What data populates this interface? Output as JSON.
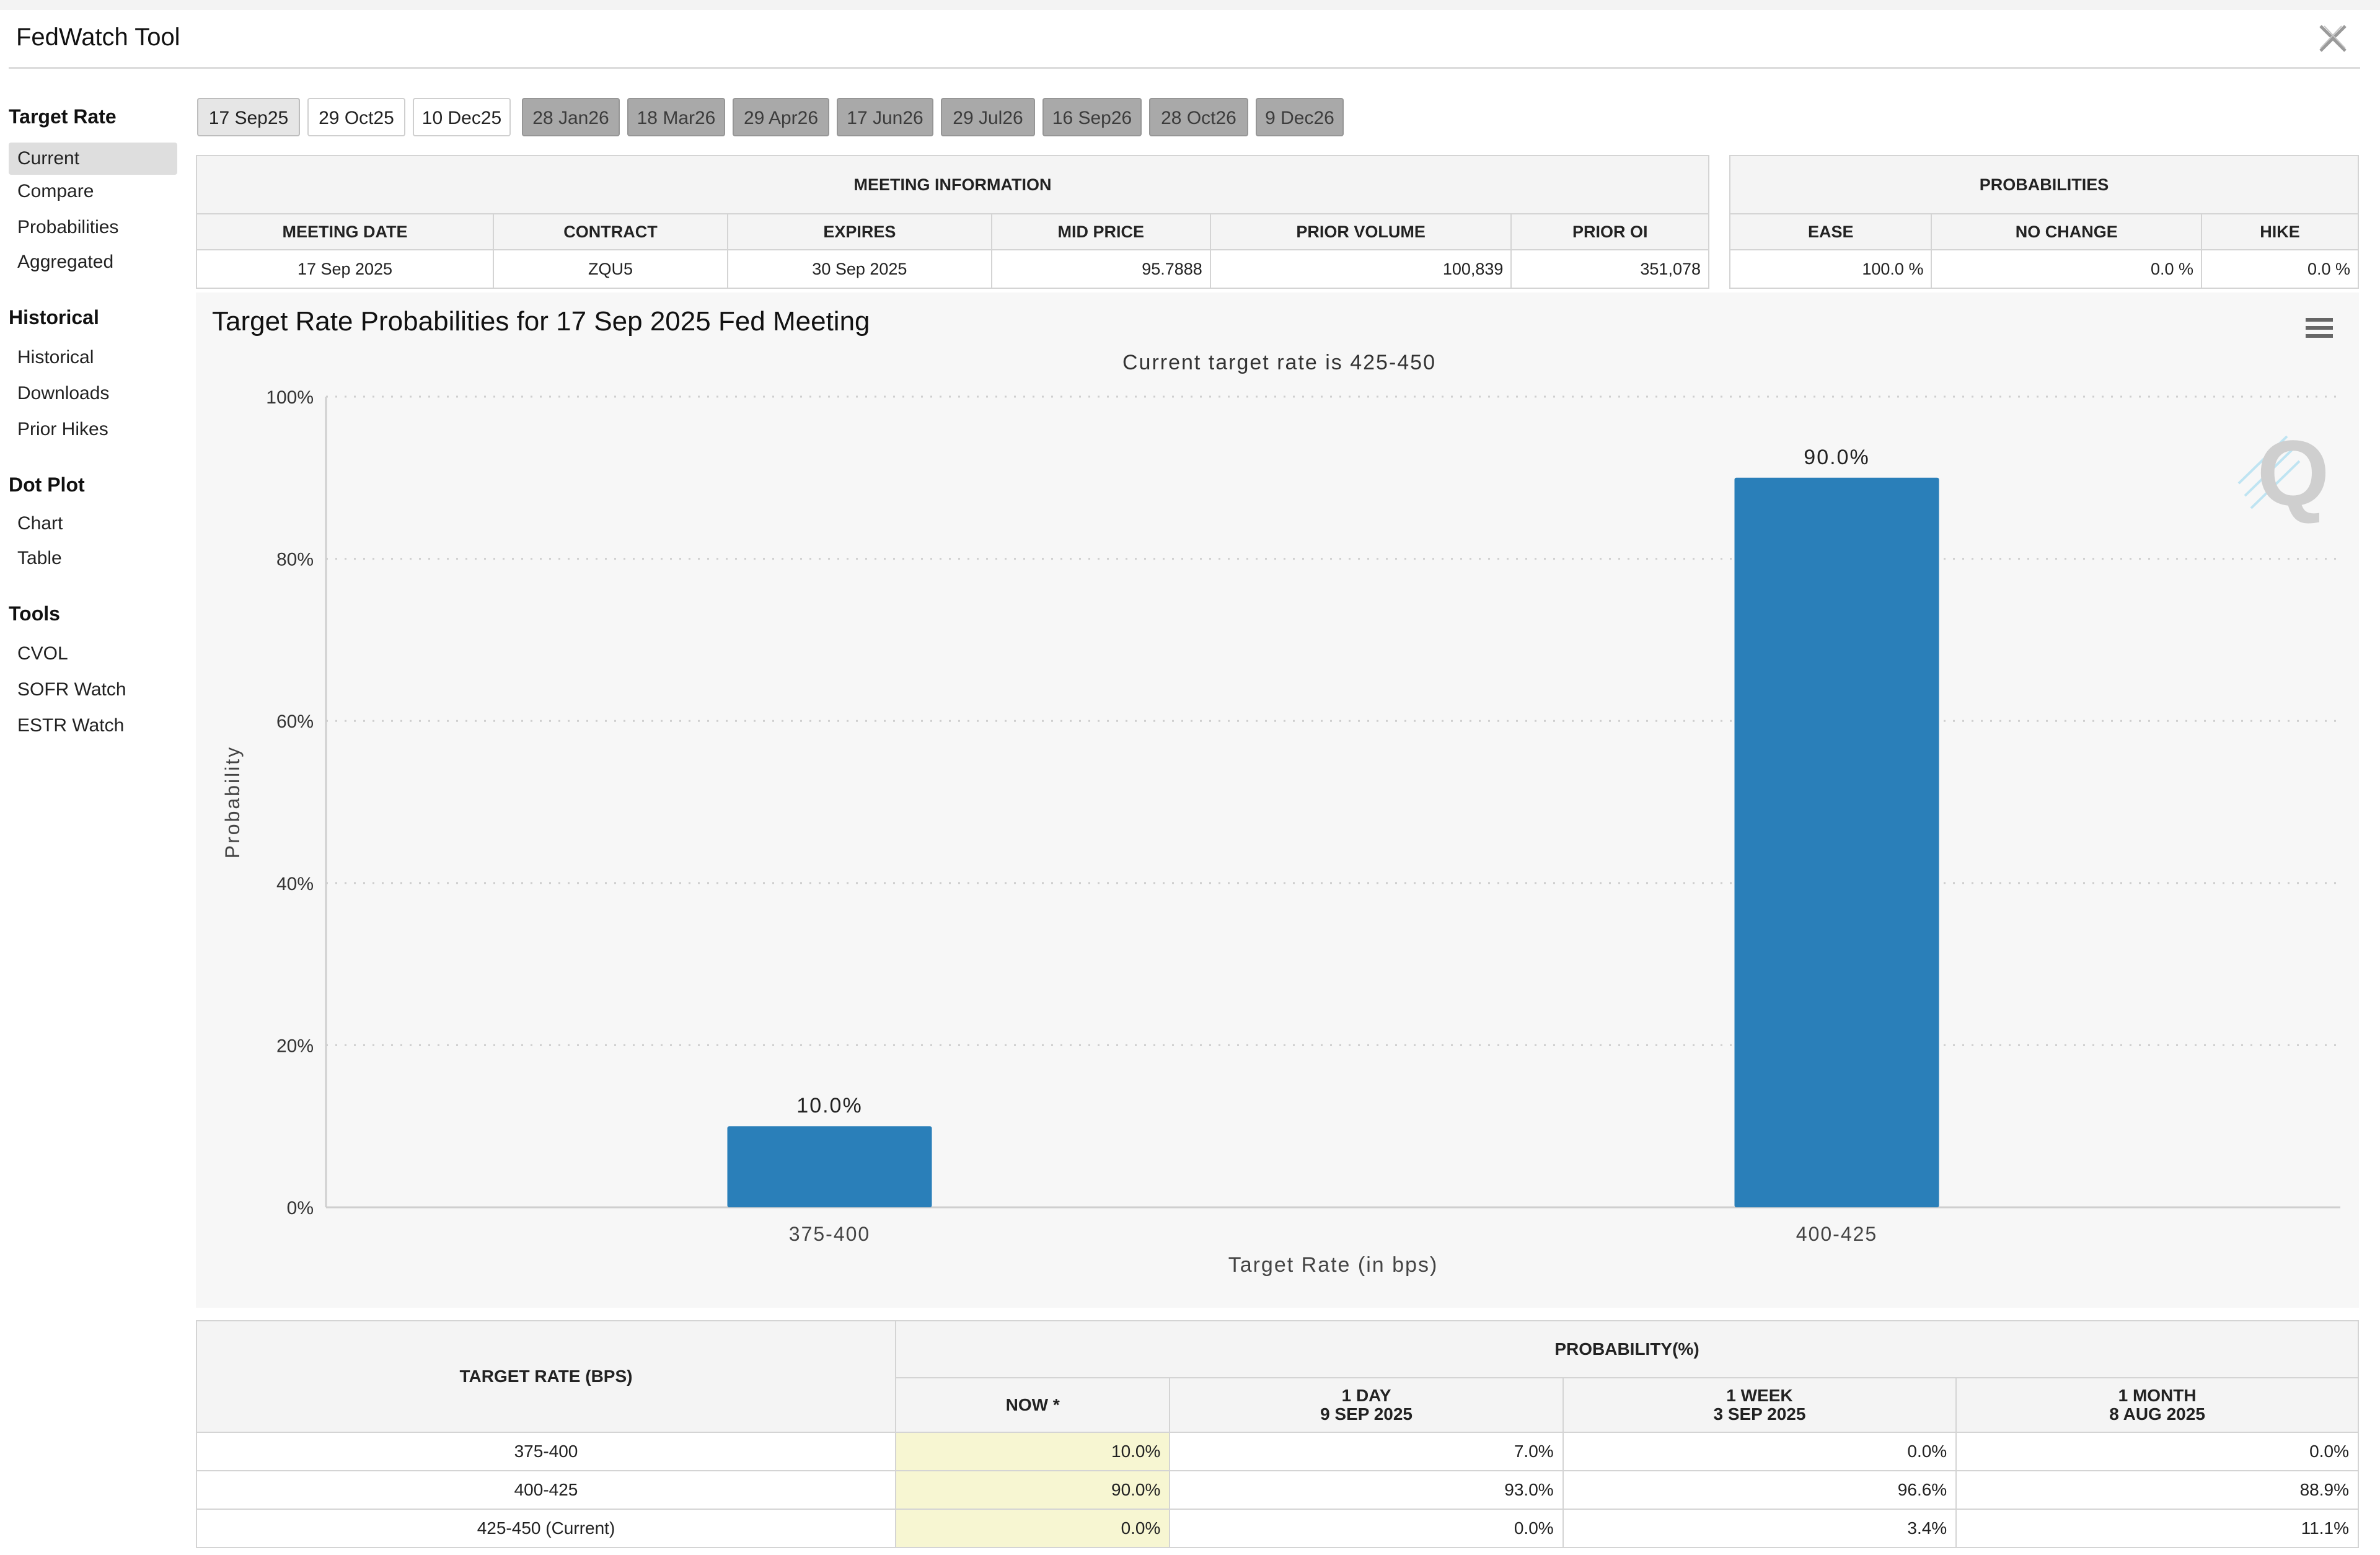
{
  "app": {
    "title": "FedWatch Tool",
    "close_icon": "x-close-icon"
  },
  "sidebar": {
    "sections": [
      {
        "heading": "Target Rate",
        "items": [
          "Current",
          "Compare",
          "Probabilities",
          "Aggregated"
        ]
      },
      {
        "heading": "Historical",
        "items": [
          "Historical",
          "Downloads",
          "Prior Hikes"
        ]
      },
      {
        "heading": "Dot Plot",
        "items": [
          "Chart",
          "Table"
        ]
      },
      {
        "heading": "Tools",
        "items": [
          "CVOL",
          "SOFR Watch",
          "ESTR Watch"
        ]
      }
    ],
    "active_item": "Current"
  },
  "meeting_tabs": [
    "17 Sep25",
    "29 Oct25",
    "10 Dec25",
    "28 Jan26",
    "18 Mar26",
    "29 Apr26",
    "17 Jun26",
    "29 Jul26",
    "16 Sep26",
    "28 Oct26",
    "9 Dec26"
  ],
  "meeting_info": {
    "heading": "MEETING INFORMATION",
    "columns": [
      "MEETING DATE",
      "CONTRACT",
      "EXPIRES",
      "MID PRICE",
      "PRIOR VOLUME",
      "PRIOR OI"
    ],
    "values": [
      "17 Sep 2025",
      "ZQU5",
      "30 Sep 2025",
      "95.7888",
      "100,839",
      "351,078"
    ]
  },
  "probabilities": {
    "heading": "PROBABILITIES",
    "columns": [
      "EASE",
      "NO CHANGE",
      "HIKE"
    ],
    "values": [
      "100.0 %",
      "0.0 %",
      "0.0 %"
    ]
  },
  "chart": {
    "title": "Target Rate Probabilities for 17 Sep 2025 Fed Meeting",
    "menu_icon": "hamburger-menu-icon",
    "watermark": "Q"
  },
  "chart_data": {
    "type": "bar",
    "title": "Target Rate Probabilities for 17 Sep 2025 Fed Meeting",
    "subtitle": "Current target rate is 425-450",
    "categories": [
      "375-400",
      "400-425"
    ],
    "values": [
      10.0,
      90.0
    ],
    "data_labels": [
      "10.0%",
      "90.0%"
    ],
    "xlabel": "Target Rate (in bps)",
    "ylabel": "Probability",
    "ylim": [
      0,
      100
    ],
    "yticks": [
      "0%",
      "20%",
      "40%",
      "60%",
      "80%",
      "100%"
    ],
    "grid": true,
    "bar_color": "#2a7fb9"
  },
  "prob_table": {
    "target_header": "TARGET RATE (BPS)",
    "prob_header": "PROBABILITY(%)",
    "columns": [
      {
        "l1": "NOW *",
        "l2": ""
      },
      {
        "l1": "1 DAY",
        "l2": "9 SEP 2025"
      },
      {
        "l1": "1 WEEK",
        "l2": "3 SEP 2025"
      },
      {
        "l1": "1 MONTH",
        "l2": "8 AUG 2025"
      }
    ],
    "rows": [
      {
        "rate": "375-400",
        "values": [
          "10.0%",
          "7.0%",
          "0.0%",
          "0.0%"
        ]
      },
      {
        "rate": "400-425",
        "values": [
          "90.0%",
          "93.0%",
          "96.6%",
          "88.9%"
        ]
      },
      {
        "rate": "425-450 (Current)",
        "values": [
          "0.0%",
          "0.0%",
          "3.4%",
          "11.1%"
        ]
      }
    ]
  }
}
